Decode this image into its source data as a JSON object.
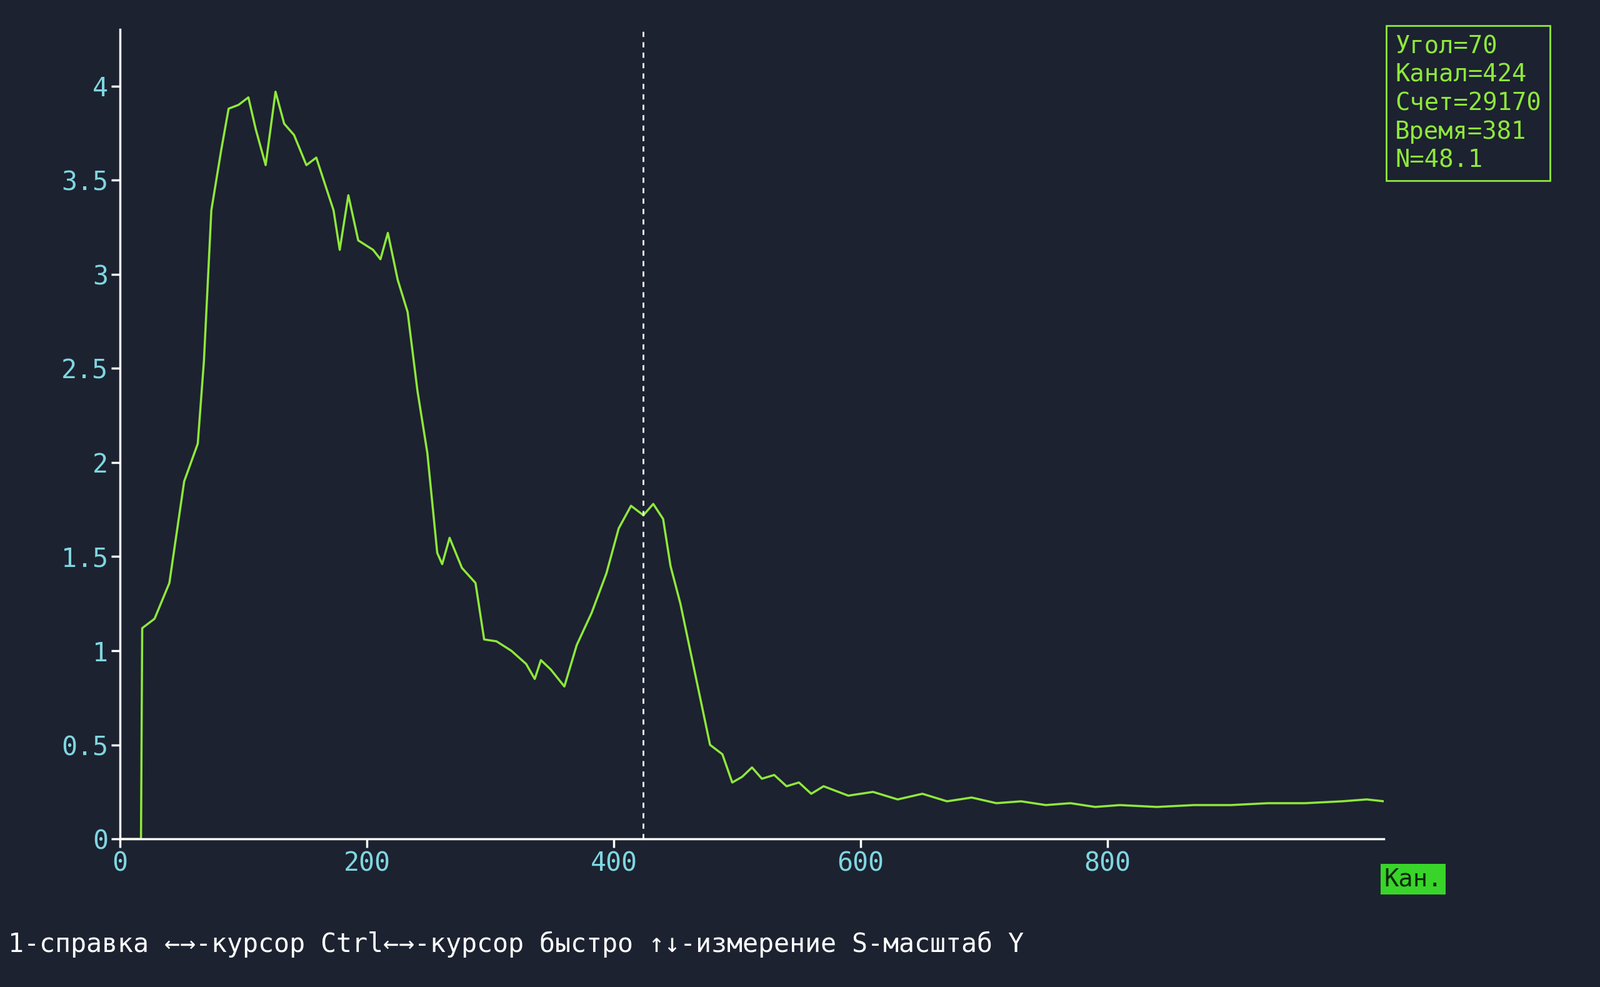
{
  "chart_data": {
    "type": "line",
    "xlabel": "Кан.",
    "x": [
      0,
      17,
      18,
      28,
      40,
      52,
      63,
      68,
      74,
      82,
      88,
      96,
      104,
      110,
      118,
      126,
      133,
      141,
      151,
      159,
      169,
      173,
      178,
      185,
      193,
      205,
      211,
      217,
      225,
      233,
      241,
      249,
      257,
      261,
      267,
      277,
      288,
      295,
      305,
      317,
      329,
      336,
      341,
      349,
      360,
      370,
      382,
      394,
      404,
      414,
      424,
      432,
      440,
      446,
      454,
      462,
      470,
      478,
      488,
      496,
      504,
      512,
      520,
      530,
      540,
      550,
      560,
      570,
      590,
      610,
      630,
      650,
      670,
      690,
      710,
      730,
      750,
      770,
      790,
      810,
      840,
      870,
      900,
      930,
      960,
      990,
      1010,
      1024
    ],
    "values": [
      0,
      0,
      1.12,
      1.17,
      1.36,
      1.9,
      2.1,
      2.54,
      3.34,
      3.66,
      3.88,
      3.9,
      3.94,
      3.77,
      3.58,
      3.97,
      3.8,
      3.74,
      3.58,
      3.62,
      3.42,
      3.34,
      3.13,
      3.42,
      3.18,
      3.13,
      3.08,
      3.22,
      2.97,
      2.8,
      2.38,
      2.05,
      1.52,
      1.46,
      1.6,
      1.44,
      1.36,
      1.06,
      1.05,
      1.0,
      0.93,
      0.85,
      0.95,
      0.9,
      0.81,
      1.03,
      1.2,
      1.41,
      1.65,
      1.77,
      1.72,
      1.78,
      1.7,
      1.45,
      1.25,
      1.0,
      0.75,
      0.5,
      0.45,
      0.3,
      0.33,
      0.38,
      0.32,
      0.34,
      0.28,
      0.3,
      0.24,
      0.28,
      0.23,
      0.25,
      0.21,
      0.24,
      0.2,
      0.22,
      0.19,
      0.2,
      0.18,
      0.19,
      0.17,
      0.18,
      0.17,
      0.18,
      0.18,
      0.19,
      0.19,
      0.2,
      0.21,
      0.2
    ],
    "color": "#8fe83a",
    "cursor": 424,
    "xlim": [
      0,
      1024
    ],
    "ylim": [
      0,
      4.3
    ],
    "xticks": [
      0,
      200,
      400,
      600,
      800
    ],
    "yticks": [
      0,
      0.5,
      1,
      1.5,
      2,
      2.5,
      3,
      3.5,
      4
    ],
    "grid": false,
    "annotations": {
      "info": [
        "Угол=70",
        "Канал=424",
        "Счет=29170",
        "Время=381",
        "N=48.1"
      ],
      "help": "1-справка ←→-курсор Ctrl←→-курсор быстро ↑↓-измерение S-масштаб Y"
    }
  }
}
